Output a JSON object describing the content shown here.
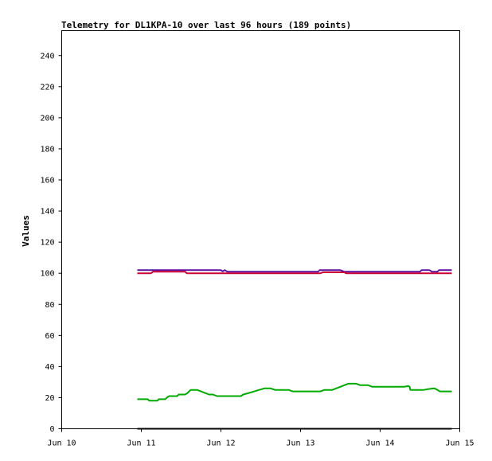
{
  "chart_data": {
    "type": "line",
    "title": "Telemetry for DL1KPA-10 over last 96 hours (189 points)",
    "ylabel": "Values",
    "xlabel": "",
    "ylim": [
      0,
      256
    ],
    "xlim": [
      10,
      15
    ],
    "x_ticks": [
      {
        "value": 10,
        "label": "Jun 10"
      },
      {
        "value": 11,
        "label": "Jun 11"
      },
      {
        "value": 12,
        "label": "Jun 12"
      },
      {
        "value": 13,
        "label": "Jun 13"
      },
      {
        "value": 14,
        "label": "Jun 14"
      },
      {
        "value": 15,
        "label": "Jun 15"
      }
    ],
    "y_ticks": [
      0,
      20,
      40,
      60,
      80,
      100,
      120,
      140,
      160,
      180,
      200,
      220,
      240
    ],
    "grid": false,
    "series": [
      {
        "color": "#5a0fa0",
        "points": [
          [
            10.95,
            102
          ],
          [
            11.2,
            102
          ],
          [
            11.5,
            102
          ],
          [
            11.8,
            102
          ],
          [
            12.0,
            102
          ],
          [
            12.02,
            101.2
          ],
          [
            12.05,
            102
          ],
          [
            12.08,
            101
          ],
          [
            12.5,
            101
          ],
          [
            13.0,
            101
          ],
          [
            13.22,
            101
          ],
          [
            13.24,
            102
          ],
          [
            13.5,
            102
          ],
          [
            13.55,
            101
          ],
          [
            14.0,
            101
          ],
          [
            14.5,
            101
          ],
          [
            14.52,
            102
          ],
          [
            14.62,
            102
          ],
          [
            14.65,
            101
          ],
          [
            14.72,
            101
          ],
          [
            14.74,
            102
          ],
          [
            14.9,
            102
          ]
        ]
      },
      {
        "color": "#cc0033",
        "points": [
          [
            10.95,
            100
          ],
          [
            11.12,
            100
          ],
          [
            11.15,
            101
          ],
          [
            11.55,
            101
          ],
          [
            11.57,
            100
          ],
          [
            12.0,
            100
          ],
          [
            12.5,
            100
          ],
          [
            13.0,
            100
          ],
          [
            13.25,
            100
          ],
          [
            13.28,
            100.6
          ],
          [
            13.55,
            100.6
          ],
          [
            13.57,
            100
          ],
          [
            14.0,
            100
          ],
          [
            14.5,
            100
          ],
          [
            14.9,
            100
          ]
        ]
      },
      {
        "color": "#00aa00",
        "points": [
          [
            10.95,
            19
          ],
          [
            11.08,
            19
          ],
          [
            11.1,
            18
          ],
          [
            11.2,
            18
          ],
          [
            11.22,
            19
          ],
          [
            11.3,
            19
          ],
          [
            11.32,
            20
          ],
          [
            11.35,
            21
          ],
          [
            11.45,
            21
          ],
          [
            11.47,
            22
          ],
          [
            11.55,
            22
          ],
          [
            11.58,
            23
          ],
          [
            11.62,
            25
          ],
          [
            11.66,
            25
          ],
          [
            11.7,
            25
          ],
          [
            11.75,
            24
          ],
          [
            11.8,
            23
          ],
          [
            11.85,
            22
          ],
          [
            11.9,
            22
          ],
          [
            11.95,
            21
          ],
          [
            12.0,
            21
          ],
          [
            12.2,
            21
          ],
          [
            12.25,
            21
          ],
          [
            12.28,
            22
          ],
          [
            12.35,
            23
          ],
          [
            12.42,
            24
          ],
          [
            12.48,
            25
          ],
          [
            12.55,
            26
          ],
          [
            12.62,
            26
          ],
          [
            12.68,
            25
          ],
          [
            12.75,
            25
          ],
          [
            12.85,
            25
          ],
          [
            12.9,
            24
          ],
          [
            13.1,
            24
          ],
          [
            13.2,
            24
          ],
          [
            13.25,
            24
          ],
          [
            13.3,
            25
          ],
          [
            13.4,
            25
          ],
          [
            13.45,
            26
          ],
          [
            13.5,
            27
          ],
          [
            13.55,
            28
          ],
          [
            13.6,
            29
          ],
          [
            13.65,
            29
          ],
          [
            13.7,
            29
          ],
          [
            13.75,
            28
          ],
          [
            13.85,
            28
          ],
          [
            13.9,
            27
          ],
          [
            14.0,
            27
          ],
          [
            14.2,
            27
          ],
          [
            14.3,
            27
          ],
          [
            14.35,
            27.5
          ],
          [
            14.37,
            27
          ],
          [
            14.38,
            25
          ],
          [
            14.5,
            25
          ],
          [
            14.55,
            25
          ],
          [
            14.6,
            25.5
          ],
          [
            14.68,
            26
          ],
          [
            14.72,
            25
          ],
          [
            14.75,
            24
          ],
          [
            14.9,
            24
          ]
        ]
      },
      {
        "color": "#000000",
        "points": [
          [
            10.95,
            0
          ],
          [
            14.9,
            0
          ]
        ]
      }
    ]
  }
}
